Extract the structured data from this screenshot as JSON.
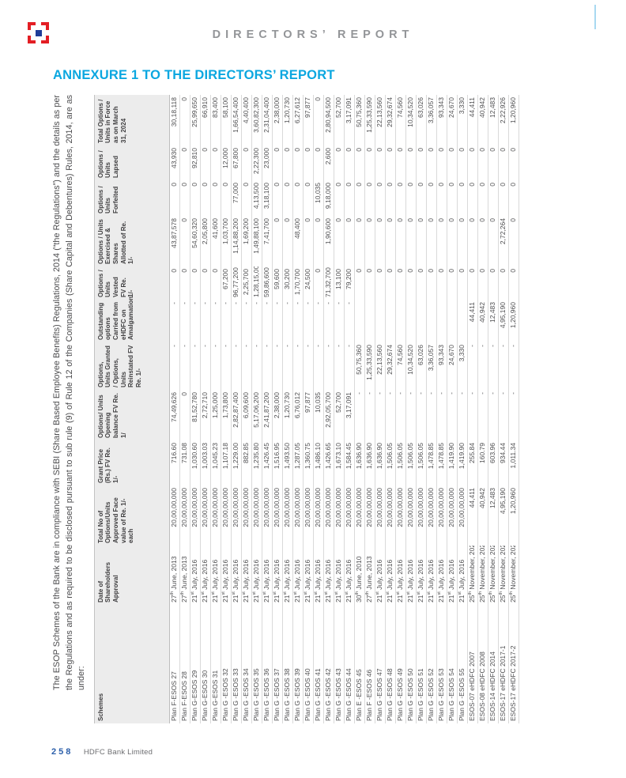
{
  "page": {
    "header_title": "DIRECTORS’ REPORT",
    "annexure_title": "ANNEXURE 1 TO THE DIRECTORS’ REPORT",
    "footer": {
      "page_number": "258",
      "footer_text": "HDFC Bank Limited"
    },
    "colors": {
      "annexure_accent": "#0ba7e0",
      "header_gray": "#939598",
      "logo_red": "#e31e24",
      "logo_navy": "#1f3d99",
      "footer_blue": "#2c5faa",
      "table_header_bg": "#ececec"
    },
    "icons": {
      "logo": "hdfc-bank-logo"
    }
  },
  "intro_paragraph": "The ESOP Schemes of the Bank are in compliance with SEBI (Share Based Employee Benefits) Regulations, 2014 (“the Regulations”) and the details as per the Regulations and as required to be disclosed pursuant to sub rule (9) of Rule 12 of the Companies (Share Capital and Debentures) Rules, 2014, are as under:",
  "table": {
    "columns": [
      "Schemes",
      "Date of Shareholders Approval",
      "Total No of Options/Units Approved Face value of Re. 1/- each",
      "Grant Price (Rs.) FV Re. 1/-",
      "Options/ Units Opening balance FV Re. 1/",
      "Options, Units Granted / Options, Units Reinstated FV Re. 1/-",
      "Outstanding options Carried from eHDFC on Amalgamation",
      "Options / Units Vested FV Re. 1/-",
      "Options / Units Exercised & Shares Allotted of Re. 1/-",
      "Options / Units Forfeited",
      "Options / Units Lapsed",
      "Total Options / Units in Force as on March 31, 2024"
    ],
    "rows": [
      [
        "Plan F-ESOS 27",
        "27th June, 2013",
        "20,00,00,000",
        "716.60",
        "74,49,626",
        "-",
        "-",
        "0",
        "43,87,578",
        "0",
        "43,930",
        "30,18,118"
      ],
      [
        "Plan F-ESOS 28",
        "27th June, 2013",
        "20,00,00,000",
        "731.08",
        "0",
        "-",
        "-",
        "0",
        "0",
        "0",
        "0",
        "0"
      ],
      [
        "Plan G-ESOS 29",
        "21st July, 2016",
        "20,00,00,000",
        "1,030.60",
        "81,52,780",
        "-",
        "-",
        "0",
        "54,60,320",
        "0",
        "92,810",
        "25,99,650"
      ],
      [
        "Plan G-ESOS 30",
        "21st July, 2016",
        "20,00,00,000",
        "1,003.03",
        "2,72,710",
        "-",
        "-",
        "0",
        "2,05,800",
        "0",
        "0",
        "66,910"
      ],
      [
        "Plan G-ESOS 31",
        "21st July, 2016",
        "20,00,00,000",
        "1,045.23",
        "1,25,000",
        "-",
        "-",
        "0",
        "41,600",
        "0",
        "0",
        "83,400"
      ],
      [
        "Plan G -ESOS 32",
        "21st July, 2016",
        "20,00,00,000",
        "1,107.18",
        "1,73,800",
        "-",
        "-",
        "67,200",
        "1,03,700",
        "0",
        "12,000",
        "58,100"
      ],
      [
        "Plan G -ESOS 33",
        "21st July, 2016",
        "20,00,00,000",
        "1,229.00",
        "2,82,87,400",
        "-",
        "-",
        "96,77,200",
        "1,14,88,200",
        "77,000",
        "67,800",
        "1,66,54,400"
      ],
      [
        "Plan G -ESOS 34",
        "21st July, 2016",
        "20,00,00,000",
        "882.85",
        "6,09,600",
        "-",
        "-",
        "2,25,700",
        "1,69,200",
        "0",
        "0",
        "4,40,400"
      ],
      [
        "Plan G -ESOS 35",
        "21st July, 2016",
        "20,00,00,000",
        "1,235.80",
        "5,17,06,200",
        "-",
        "-",
        "1,28,15,000",
        "1,49,88,100",
        "4,13,500",
        "2,22,300",
        "3,60,82,300"
      ],
      [
        "Plan G -ESOS 36",
        "21st July, 2016",
        "20,00,00,000",
        "1,426.45",
        "2,41,87,200",
        "-",
        "-",
        "59,86,600",
        "7,41,700",
        "3,18,100",
        "23,000",
        "2,31,04,400"
      ],
      [
        "Plan G -ESOS 37",
        "21st July, 2016",
        "20,00,00,000",
        "1,516.95",
        "2,38,000",
        "-",
        "-",
        "59,600",
        "0",
        "0",
        "0",
        "2,38,000"
      ],
      [
        "Plan G -ESOS 38",
        "21st July, 2016",
        "20,00,00,000",
        "1,493.50",
        "1,20,730",
        "-",
        "-",
        "30,200",
        "0",
        "0",
        "0",
        "1,20,730"
      ],
      [
        "Plan G -ESOS 39",
        "21st July, 2016",
        "20,00,00,000",
        "1,287.05",
        "6,76,012",
        "-",
        "-",
        "1,70,700",
        "48,400",
        "0",
        "0",
        "6,27,612"
      ],
      [
        "Plan G -ESOS 40",
        "21st July, 2016",
        "20,00,00,000",
        "1,360.75",
        "97,877",
        "-",
        "-",
        "24,500",
        "0",
        "0",
        "0",
        "97,877"
      ],
      [
        "Plan G -ESOS 41",
        "21st July, 2016",
        "20,00,00,000",
        "1,486.10",
        "10,035",
        "-",
        "-",
        "0",
        "0",
        "10,035",
        "0",
        "0"
      ],
      [
        "Plan G -ESOS 42",
        "21st July, 2016",
        "20,00,00,000",
        "1,426.65",
        "2,92,05,700",
        "-",
        "-",
        "71,32,700",
        "1,90,600",
        "9,18,000",
        "2,600",
        "2,80,94,500"
      ],
      [
        "Plan G -ESOS 43",
        "21st July, 2016",
        "20,00,00,000",
        "1,673.10",
        "52,700",
        "-",
        "-",
        "13,100",
        "0",
        "0",
        "0",
        "52,700"
      ],
      [
        "Plan G -ESOS 44",
        "21st July, 2016",
        "20,00,00,000",
        "1,584.45",
        "3,17,091",
        "-",
        "-",
        "79,200",
        "0",
        "0",
        "0",
        "3,17,091"
      ],
      [
        "Plan E -ESOS 45",
        "30th June, 2010",
        "20,00,00,000",
        "1,636.90",
        "-",
        "50,75,360",
        "",
        "0",
        "0",
        "0",
        "0",
        "50,75,360"
      ],
      [
        "Plan F -ESOS 46",
        "27th June, 2013",
        "20,00,00,000",
        "1,636.90",
        "-",
        "1,25,33,590",
        "",
        "0",
        "0",
        "0",
        "0",
        "1,25,33,590"
      ],
      [
        "Plan G -ESOS 47",
        "21st July, 2016",
        "20,00,00,000",
        "1,636.90",
        "-",
        "22,13,560",
        "",
        "0",
        "0",
        "0",
        "0",
        "22,13,560"
      ],
      [
        "Plan G -ESOS 48",
        "21st July, 2016",
        "20,00,00,000",
        "1,506.05",
        "-",
        "29,32,674",
        "",
        "0",
        "0",
        "0",
        "0",
        "29,32,674"
      ],
      [
        "Plan G -ESOS 49",
        "21st July, 2016",
        "20,00,00,000",
        "1,506.05",
        "-",
        "74,560",
        "",
        "0",
        "0",
        "0",
        "0",
        "74,560"
      ],
      [
        "Plan G -ESOS 50",
        "21st July, 2016",
        "20,00,00,000",
        "1,506.05",
        "-",
        "10,34,520",
        "",
        "0",
        "0",
        "0",
        "0",
        "10,34,520"
      ],
      [
        "Plan G -ESOS 51",
        "21st July, 2016",
        "20,00,00,000",
        "1,506.05",
        "-",
        "63,026",
        "",
        "0",
        "0",
        "0",
        "0",
        "63,026"
      ],
      [
        "Plan G -ESOS 52",
        "21st July, 2016",
        "20,00,00,000",
        "1,478.85",
        "-",
        "3,36,057",
        "",
        "0",
        "0",
        "0",
        "0",
        "3,36,057"
      ],
      [
        "Plan G -ESOS 53",
        "21st July, 2016",
        "20,00,00,000",
        "1,478.85",
        "-",
        "93,343",
        "",
        "0",
        "0",
        "0",
        "0",
        "93,343"
      ],
      [
        "Plan G -ESOS 54",
        "21st July, 2016",
        "20,00,00,000",
        "1,419.90",
        "-",
        "24,670",
        "",
        "0",
        "0",
        "0",
        "0",
        "24,670"
      ],
      [
        "Plan G -ESOS 55",
        "21st July, 2016",
        "20,00,00,000",
        "1,419.90",
        "-",
        "3,330",
        "",
        "0",
        "0",
        "0",
        "0",
        "3,330"
      ],
      [
        "ESOS-07 eHDFC 2007",
        "25th November, 2022",
        "44,411",
        "255.84",
        "-",
        "-",
        "44,411",
        "0",
        "0",
        "0",
        "0",
        "44,411"
      ],
      [
        "ESOS-08 eHDFC 2008",
        "25th November, 2022",
        "40,942",
        "160.79",
        "-",
        "-",
        "40,942",
        "0",
        "0",
        "0",
        "0",
        "40,942"
      ],
      [
        "ESOS-14 eHDFC 2014",
        "25th November, 2022",
        "12,483",
        "603.96",
        "-",
        "-",
        "12,483",
        "0",
        "0",
        "0",
        "0",
        "12,483"
      ],
      [
        "ESOS-17 eHDFC 2017-1",
        "25th November, 2022",
        "4,95,190",
        "934.44",
        "-",
        "-",
        "4,95,190",
        "0",
        "2,72,264",
        "0",
        "0",
        "2,22,926"
      ],
      [
        "ESOS-17 eHDFC 2017-2",
        "25th November, 2022",
        "1,20,960",
        "1,011.34",
        "-",
        "-",
        "1,20,960",
        "0",
        "0",
        "0",
        "0",
        "1,20,960"
      ]
    ]
  }
}
